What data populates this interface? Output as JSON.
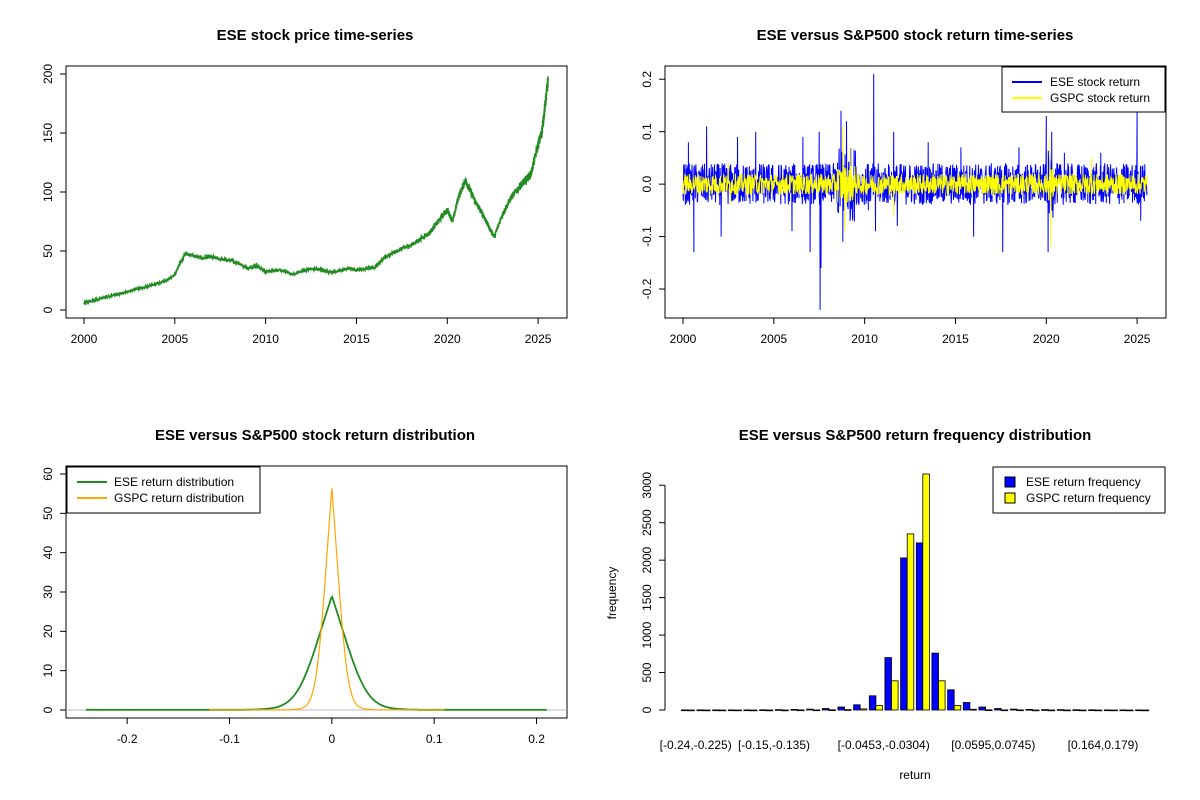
{
  "chart_data": [
    {
      "type": "line",
      "title": "ESE stock price time-series",
      "xlabel": "",
      "ylabel": "",
      "xlim": [
        2000,
        2025.6
      ],
      "ylim": [
        0,
        200
      ],
      "x_ticks": [
        2000,
        2005,
        2010,
        2015,
        2020,
        2025
      ],
      "y_ticks": [
        0,
        50,
        100,
        150,
        200
      ],
      "color": "#228B22",
      "series": [
        {
          "x": [
            2000.0,
            2000.5,
            2001.0,
            2001.5,
            2002.0,
            2002.5,
            2003.0,
            2003.5,
            2004.0,
            2004.5,
            2005.0,
            2005.3,
            2005.6,
            2006.0,
            2006.5,
            2007.0,
            2007.5,
            2008.0,
            2008.5,
            2009.0,
            2009.5,
            2010.0,
            2010.5,
            2011.0,
            2011.5,
            2012.0,
            2012.5,
            2013.0,
            2013.5,
            2014.0,
            2014.5,
            2015.0,
            2015.5,
            2016.0,
            2016.5,
            2017.0,
            2017.5,
            2018.0,
            2018.5,
            2019.0,
            2019.5,
            2020.0,
            2020.3,
            2020.6,
            2021.0,
            2021.3,
            2021.6,
            2022.0,
            2022.3,
            2022.6,
            2023.0,
            2023.5,
            2024.0,
            2024.3,
            2024.6,
            2025.0,
            2025.2,
            2025.4,
            2025.55
          ],
          "y": [
            6,
            8,
            10,
            12,
            14,
            16,
            18,
            20,
            22,
            25,
            30,
            40,
            48,
            46,
            44,
            45,
            43,
            42,
            40,
            35,
            38,
            32,
            34,
            33,
            30,
            33,
            35,
            34,
            32,
            33,
            35,
            34,
            35,
            36,
            44,
            48,
            52,
            55,
            60,
            65,
            75,
            85,
            75,
            95,
            110,
            100,
            90,
            80,
            70,
            62,
            80,
            95,
            105,
            110,
            115,
            140,
            150,
            175,
            195
          ]
        }
      ]
    },
    {
      "type": "line",
      "title": "ESE versus S&P500 stock return time-series",
      "xlabel": "",
      "ylabel": "",
      "xlim": [
        2000,
        2025.6
      ],
      "ylim": [
        -0.24,
        0.21
      ],
      "x_ticks": [
        2000,
        2005,
        2010,
        2015,
        2020,
        2025
      ],
      "y_ticks": [
        -0.2,
        -0.1,
        0.0,
        0.1,
        0.2
      ],
      "y_tick_labels": [
        "-0.2",
        "-0.1",
        "0.0",
        "0.1",
        "0.2"
      ],
      "legend": "top-right",
      "series": [
        {
          "name": "ESE stock return",
          "color": "#0000FF",
          "spikes": [
            [
              2000.3,
              0.08
            ],
            [
              2000.6,
              -0.13
            ],
            [
              2001.3,
              0.11
            ],
            [
              2002.1,
              -0.1
            ],
            [
              2003.0,
              0.09
            ],
            [
              2004.0,
              0.1
            ],
            [
              2006.0,
              -0.09
            ],
            [
              2006.6,
              0.09
            ],
            [
              2007.0,
              -0.13
            ],
            [
              2007.5,
              0.1
            ],
            [
              2007.55,
              -0.24
            ],
            [
              2007.6,
              -0.16
            ],
            [
              2008.7,
              0.14
            ],
            [
              2008.8,
              -0.11
            ],
            [
              2009.0,
              0.12
            ],
            [
              2010.2,
              -0.05
            ],
            [
              2010.5,
              0.21
            ],
            [
              2010.6,
              -0.09
            ],
            [
              2011.6,
              0.1
            ],
            [
              2011.8,
              -0.08
            ],
            [
              2013.5,
              0.08
            ],
            [
              2015.3,
              0.07
            ],
            [
              2016.0,
              -0.1
            ],
            [
              2017.6,
              -0.13
            ],
            [
              2018.5,
              0.07
            ],
            [
              2020.0,
              0.13
            ],
            [
              2020.1,
              -0.13
            ],
            [
              2020.3,
              0.1
            ],
            [
              2021.0,
              0.06
            ],
            [
              2023.0,
              0.06
            ],
            [
              2025.0,
              0.14
            ],
            [
              2025.2,
              -0.07
            ]
          ],
          "band": 0.04
        },
        {
          "name": "GSPC stock return",
          "color": "#FFFF00",
          "spikes": [
            [
              2002.5,
              0.04
            ],
            [
              2002.6,
              -0.04
            ],
            [
              2008.8,
              0.11
            ],
            [
              2008.9,
              -0.09
            ],
            [
              2009.2,
              0.07
            ],
            [
              2011.6,
              -0.06
            ],
            [
              2020.2,
              0.09
            ],
            [
              2020.25,
              -0.12
            ],
            [
              2022.5,
              0.05
            ]
          ],
          "band": 0.02
        }
      ]
    },
    {
      "type": "line",
      "title": "ESE versus S&P500 stock return distribution",
      "xlabel": "",
      "ylabel": "",
      "xlim": [
        -0.25,
        0.22
      ],
      "ylim": [
        0,
        60
      ],
      "x_ticks": [
        -0.2,
        -0.1,
        0.0,
        0.1,
        0.2
      ],
      "y_ticks": [
        0,
        10,
        20,
        30,
        40,
        50,
        60
      ],
      "legend": "top-left",
      "series": [
        {
          "name": "ESE return distribution",
          "color": "#228B22",
          "peak": 29,
          "sd": 0.019,
          "xrange": [
            -0.24,
            0.21
          ]
        },
        {
          "name": "GSPC return distribution",
          "color": "#FFA500",
          "peak": 56.5,
          "sd": 0.0085,
          "xrange": [
            -0.12,
            0.11
          ]
        }
      ]
    },
    {
      "type": "bar",
      "title": "ESE versus S&P500 return frequency distribution",
      "xlabel": "return",
      "ylabel": "frequency",
      "ylim": [
        0,
        3150
      ],
      "y_ticks": [
        0,
        500,
        1000,
        1500,
        2000,
        2500,
        3000
      ],
      "category_labels_shown": [
        "[-0.24,-0.225)",
        "[-0.15,-0.135)",
        "[-0.0453,-0.0304)",
        "[0.0595,0.0745)",
        "[0.164,0.179)"
      ],
      "legend": "top-right",
      "series": [
        {
          "name": "ESE return frequency",
          "color": "#0000FF",
          "values": [
            1,
            1,
            1,
            1,
            2,
            3,
            5,
            8,
            12,
            20,
            40,
            70,
            190,
            700,
            2030,
            2230,
            760,
            270,
            100,
            40,
            20,
            12,
            8,
            6,
            5,
            4,
            3,
            2,
            2,
            1
          ]
        },
        {
          "name": "GSPC return frequency",
          "color": "#FFFF00",
          "values": [
            0,
            0,
            0,
            0,
            0,
            0,
            0,
            1,
            2,
            3,
            5,
            15,
            60,
            390,
            2350,
            3150,
            390,
            60,
            10,
            3,
            2,
            1,
            0,
            0,
            0,
            0,
            0,
            0,
            0,
            0
          ]
        }
      ]
    }
  ]
}
